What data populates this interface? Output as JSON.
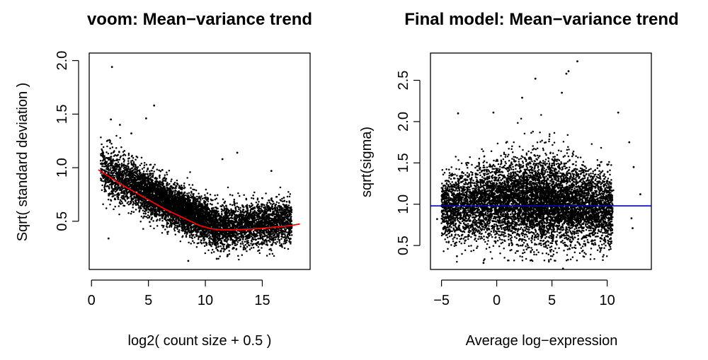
{
  "chart_data": [
    {
      "type": "scatter",
      "title": "voom: Mean−variance trend",
      "xlabel": "log2( count size + 0.5 )",
      "ylabel": "Sqrt( standard deviation )",
      "xlim": [
        -0.2,
        19.2
      ],
      "ylim": [
        0.05,
        2.07
      ],
      "x_ticks": [
        0,
        5,
        10,
        15
      ],
      "y_ticks": [
        0.5,
        1.0,
        1.5,
        2.0
      ],
      "x_tick_labels": [
        "0",
        "5",
        "10",
        "15"
      ],
      "y_tick_labels": [
        "0.5",
        "1.0",
        "1.5",
        "2.0"
      ],
      "point_color": "#000000",
      "trend_color": "#ff0000",
      "trend_line": {
        "x": [
          0.6,
          1.5,
          2.5,
          3.5,
          4.5,
          5.5,
          6.5,
          7.5,
          8.5,
          9.5,
          10.5,
          11.5,
          12.5,
          13.5,
          14.5,
          15.5,
          16.5,
          17.5,
          18.3
        ],
        "y": [
          0.98,
          0.92,
          0.85,
          0.79,
          0.73,
          0.67,
          0.61,
          0.56,
          0.51,
          0.46,
          0.43,
          0.42,
          0.42,
          0.425,
          0.43,
          0.44,
          0.45,
          0.46,
          0.475
        ]
      },
      "points": [
        {
          "x": 1.8,
          "y": 1.94
        },
        {
          "x": 5.5,
          "y": 1.58
        },
        {
          "x": 4.8,
          "y": 1.46
        },
        {
          "x": 1.7,
          "y": 1.45
        },
        {
          "x": 2.5,
          "y": 1.4
        },
        {
          "x": 3.5,
          "y": 1.32
        },
        {
          "x": 12.8,
          "y": 1.14
        },
        {
          "x": 11.5,
          "y": 1.08
        },
        {
          "x": 15.8,
          "y": 0.97
        },
        {
          "x": 16.9,
          "y": 0.72
        },
        {
          "x": 17.5,
          "y": 0.52
        },
        {
          "x": 16.8,
          "y": 0.38
        },
        {
          "x": 1.5,
          "y": 0.34
        },
        {
          "x": 8.5,
          "y": 0.13
        },
        {
          "x": 11.0,
          "y": 0.15
        }
      ]
    },
    {
      "type": "scatter",
      "title": "Final model: Mean−variance trend",
      "xlabel": "Average log−expression",
      "ylabel": "sqrt(sigma)",
      "xlim": [
        -6.0,
        14.0
      ],
      "ylim": [
        0.21,
        2.83
      ],
      "x_ticks": [
        -5,
        0,
        5,
        10
      ],
      "y_ticks": [
        0.5,
        1.0,
        1.5,
        2.0,
        2.5
      ],
      "x_tick_labels": [
        "−5",
        "0",
        "5",
        "10"
      ],
      "y_tick_labels": [
        "0.5",
        "1.0",
        "1.5",
        "2.0",
        "2.5"
      ],
      "point_color": "#000000",
      "hline": {
        "y": 0.98,
        "color": "#0000cc"
      },
      "points": [
        {
          "x": 7.3,
          "y": 2.73
        },
        {
          "x": 6.5,
          "y": 2.61
        },
        {
          "x": 6.3,
          "y": 2.58
        },
        {
          "x": 3.5,
          "y": 2.52
        },
        {
          "x": 5.9,
          "y": 2.35
        },
        {
          "x": 2.3,
          "y": 2.29
        },
        {
          "x": -3.5,
          "y": 2.1
        },
        {
          "x": -0.3,
          "y": 2.11
        },
        {
          "x": 11.0,
          "y": 2.11
        },
        {
          "x": 12.0,
          "y": 1.75
        },
        {
          "x": 12.4,
          "y": 1.45
        },
        {
          "x": 13.0,
          "y": 1.12
        },
        {
          "x": 12.2,
          "y": 0.83
        },
        {
          "x": 12.3,
          "y": 0.71
        },
        {
          "x": -5.4,
          "y": 0.82
        },
        {
          "x": -3.6,
          "y": 0.37
        },
        {
          "x": -1.2,
          "y": 0.29
        },
        {
          "x": 6.0,
          "y": 0.22
        }
      ]
    }
  ]
}
